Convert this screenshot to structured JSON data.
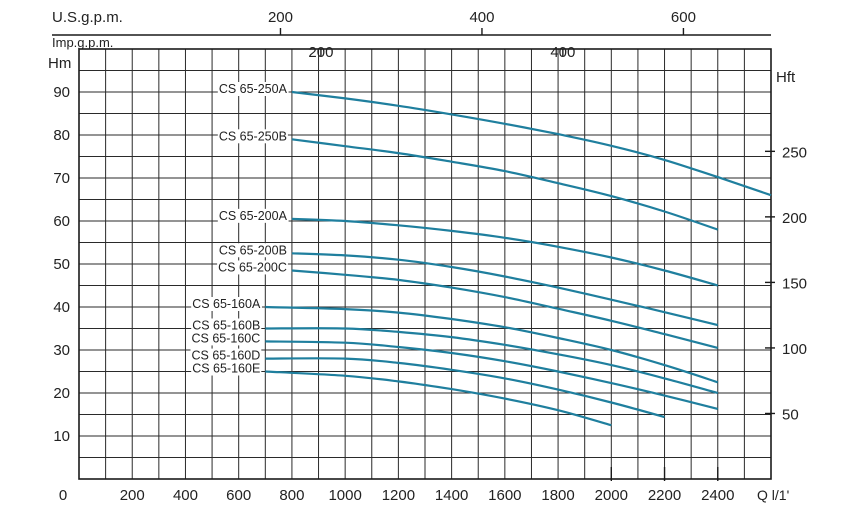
{
  "chart_data": {
    "type": "line",
    "title": "",
    "xlabel": "Q l/1'",
    "ylabel": "Hm",
    "ylabel_right": "Hft",
    "top_axis_1_label": "U.S.g.p.m.",
    "top_axis_2_label": "Imp.g.p.m.",
    "xlim": [
      0,
      2600
    ],
    "ylim": [
      0,
      100
    ],
    "grid": true,
    "colors": {
      "series": "#1f7f9e",
      "grid": "#2a2a2a",
      "text": "#222222"
    },
    "x_ticks": [
      {
        "v": 0,
        "label": "0"
      },
      {
        "v": 200,
        "label": "200"
      },
      {
        "v": 400,
        "label": "400"
      },
      {
        "v": 600,
        "label": "600"
      },
      {
        "v": 800,
        "label": "800"
      },
      {
        "v": 1000,
        "label": "1000"
      },
      {
        "v": 1200,
        "label": "1200"
      },
      {
        "v": 1400,
        "label": "1400"
      },
      {
        "v": 1600,
        "label": "1600"
      },
      {
        "v": 1800,
        "label": "1800"
      },
      {
        "v": 2000,
        "label": "2000"
      },
      {
        "v": 2200,
        "label": "2200"
      },
      {
        "v": 2400,
        "label": "2400"
      }
    ],
    "y_ticks": [
      {
        "v": 10,
        "label": "10"
      },
      {
        "v": 20,
        "label": "20"
      },
      {
        "v": 30,
        "label": "30"
      },
      {
        "v": 40,
        "label": "40"
      },
      {
        "v": 50,
        "label": "50"
      },
      {
        "v": 60,
        "label": "60"
      },
      {
        "v": 70,
        "label": "70"
      },
      {
        "v": 80,
        "label": "80"
      },
      {
        "v": 90,
        "label": "90"
      }
    ],
    "y_right_ticks": [
      {
        "v": 15.24,
        "label": "50"
      },
      {
        "v": 30.48,
        "label": "100"
      },
      {
        "v": 45.72,
        "label": "150"
      },
      {
        "v": 60.96,
        "label": "200"
      },
      {
        "v": 76.2,
        "label": "250"
      }
    ],
    "top_us_ticks": [
      {
        "v": 757,
        "label": "200"
      },
      {
        "v": 1514,
        "label": "400"
      },
      {
        "v": 2271,
        "label": "600"
      }
    ],
    "top_imp_ticks": [
      {
        "v": 909,
        "label": "200"
      },
      {
        "v": 1818,
        "label": "400"
      }
    ],
    "series": [
      {
        "name": "CS 65-250A",
        "x": [
          800,
          1000,
          1200,
          1400,
          1600,
          1800,
          2000,
          2200,
          2400,
          2600
        ],
        "y": [
          90,
          88.5,
          86.8,
          84.8,
          82.6,
          80.2,
          77.5,
          74.2,
          70.2,
          66
        ]
      },
      {
        "name": "CS 65-250B",
        "x": [
          800,
          1000,
          1200,
          1400,
          1600,
          1800,
          2000,
          2200,
          2400
        ],
        "y": [
          79,
          77.4,
          75.8,
          73.8,
          71.6,
          68.8,
          65.8,
          62.2,
          58
        ]
      },
      {
        "name": "CS 65-200A",
        "x": [
          800,
          1000,
          1200,
          1400,
          1600,
          1800,
          2000,
          2200,
          2400
        ],
        "y": [
          60.5,
          60,
          59,
          57.7,
          56.1,
          54,
          51.5,
          48.5,
          45
        ]
      },
      {
        "name": "CS 65-200B",
        "x": [
          800,
          1000,
          1200,
          1400,
          1600,
          1800,
          2000,
          2200,
          2400
        ],
        "y": [
          52.5,
          52,
          51,
          49.3,
          47.1,
          44.5,
          41.7,
          38.8,
          35.8
        ]
      },
      {
        "name": "CS 65-200C",
        "x": [
          800,
          1000,
          1200,
          1400,
          1600,
          1800,
          2000,
          2200,
          2400
        ],
        "y": [
          48.5,
          47.5,
          46.3,
          44.5,
          42.3,
          39.6,
          36.8,
          33.7,
          30.5
        ]
      },
      {
        "name": "CS 65-160A",
        "x": [
          700,
          1000,
          1200,
          1400,
          1600,
          1800,
          2000,
          2200,
          2400
        ],
        "y": [
          40,
          39.5,
          38.7,
          37.2,
          35.3,
          32.8,
          30,
          26.5,
          22.5
        ]
      },
      {
        "name": "CS 65-160B",
        "x": [
          700,
          1000,
          1200,
          1400,
          1600,
          1800,
          2000,
          2200,
          2400
        ],
        "y": [
          35,
          35,
          34.2,
          33,
          31.2,
          29,
          26.5,
          23.4,
          20
        ]
      },
      {
        "name": "CS 65-160C",
        "x": [
          700,
          1000,
          1200,
          1400,
          1600,
          1800,
          2000,
          2200,
          2400
        ],
        "y": [
          32,
          31.7,
          30.7,
          29.3,
          27.4,
          25,
          22.3,
          19.4,
          16.3
        ]
      },
      {
        "name": "CS 65-160D",
        "x": [
          700,
          1000,
          1200,
          1400,
          1600,
          1800,
          2000,
          2200
        ],
        "y": [
          28,
          28,
          27,
          25.4,
          23.4,
          20.8,
          17.8,
          14.4
        ]
      },
      {
        "name": "CS 65-160E",
        "x": [
          700,
          1000,
          1200,
          1400,
          1600,
          1800,
          2000
        ],
        "y": [
          25,
          24,
          22.7,
          20.9,
          18.7,
          16,
          12.5
        ]
      }
    ]
  }
}
